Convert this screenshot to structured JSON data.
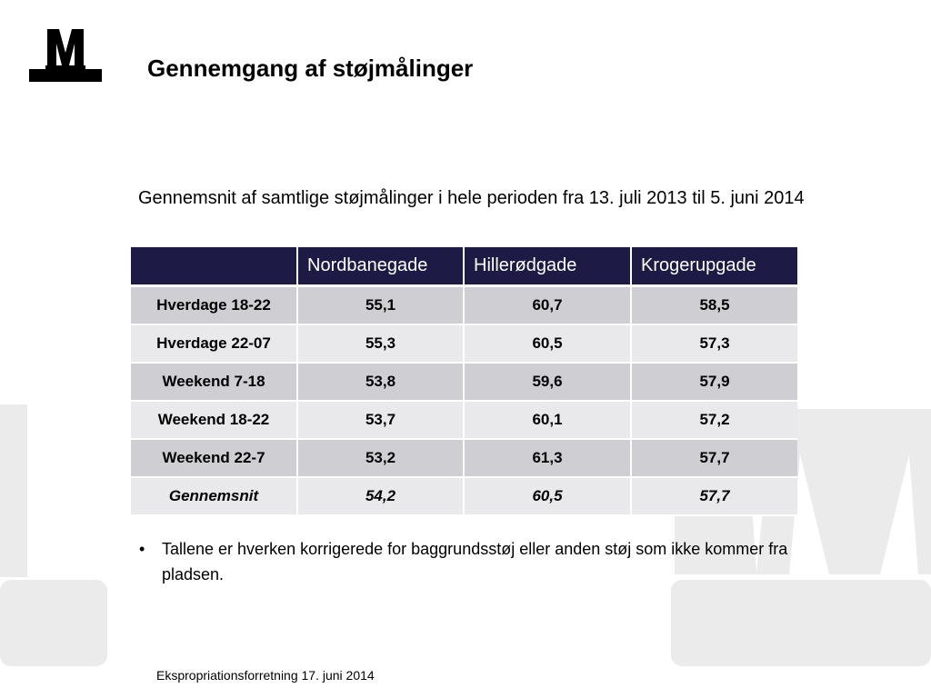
{
  "slide": {
    "title": "Gennemgang af støjmålinger",
    "subtitle": "Gennemsnit af samtlige støjmålinger i hele perioden fra 13. juli 2013 til 5. juni 2014",
    "bullet": "Tallene er hverken korrigerede for baggrundsstøj eller anden støj som ikke kommer fra pladsen.",
    "footer": "Ekspropriationsforretning 17. juni 2014"
  },
  "table": {
    "headers": [
      "",
      "Nordbanegade",
      "Hillerødgade",
      "Krogerupgade"
    ],
    "rows": [
      [
        "Hverdage 18-22",
        "55,1",
        "60,7",
        "58,5"
      ],
      [
        "Hverdage 22-07",
        "55,3",
        "60,5",
        "57,3"
      ],
      [
        "Weekend 7-18",
        "53,8",
        "59,6",
        "57,9"
      ],
      [
        "Weekend 18-22",
        "53,7",
        "60,1",
        "57,2"
      ],
      [
        "Weekend 22-7",
        "53,2",
        "61,3",
        "57,7"
      ]
    ],
    "total": [
      "Gennemsnit",
      "54,2",
      "60,5",
      "57,7"
    ]
  },
  "colors": {
    "header_bg": "#1d1a45",
    "row_dark": "#cfcfd3",
    "row_light": "#e9e9ec",
    "watermark": "#ebebeb"
  },
  "icons": {
    "logo": "metro-m-logo"
  }
}
